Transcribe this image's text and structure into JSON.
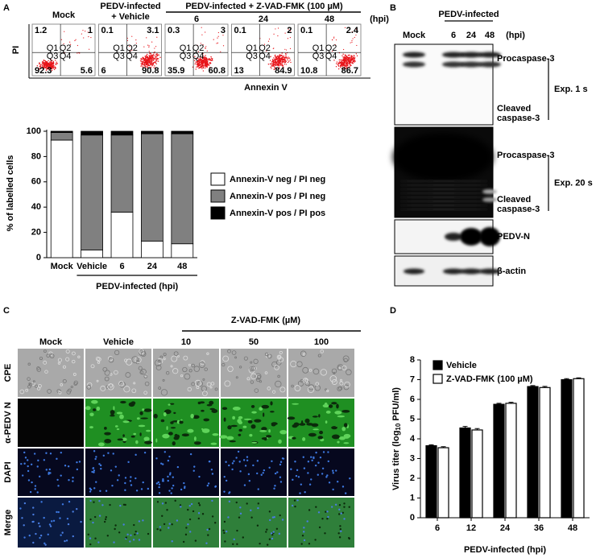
{
  "panel_labels": [
    "A",
    "B",
    "C",
    "D"
  ],
  "panel_a_flow": {
    "mock": "Mock",
    "vehicle": [
      "PEDV-infected",
      "+ Vehicle"
    ],
    "zvad": "PEDV-infected + Z-VAD-FMK (100 µM)",
    "times": [
      "6",
      "24",
      "48"
    ],
    "unit": "(hpi)",
    "y_label": "PI",
    "x_label": "Annexin V",
    "quadrant_names": [
      "Q1",
      "Q2",
      "Q3",
      "Q4"
    ],
    "plots": [
      {
        "quadrants": [
          1.2,
          1,
          92.3,
          5.6
        ]
      },
      {
        "quadrants": [
          0.1,
          3.1,
          6,
          90.8
        ]
      },
      {
        "quadrants": [
          0.3,
          3,
          35.9,
          60.8
        ]
      },
      {
        "quadrants": [
          0.1,
          2,
          13,
          84.9
        ]
      },
      {
        "quadrants": [
          0.1,
          2.4,
          10.8,
          86.7
        ]
      }
    ]
  },
  "chart_data": [
    {
      "type": "stacked_bar",
      "y_label": "% of labelled cells",
      "categories": [
        "Mock",
        "Vehicle",
        "6",
        "24",
        "48"
      ],
      "group_label": "PEDV-infected (hpi)",
      "ylim": [
        0,
        100
      ],
      "yticks": [
        0,
        20,
        40,
        60,
        80,
        100
      ],
      "series": [
        {
          "name": "Annexin-V neg / PI neg",
          "color": "#ffffff",
          "values": [
            93,
            6,
            36,
            13,
            11
          ]
        },
        {
          "name": "Annexin-V pos / PI neg",
          "color": "#808080",
          "values": [
            6,
            91,
            61,
            85,
            87
          ]
        },
        {
          "name": "Annexin-V pos / PI pos",
          "color": "#000000",
          "values": [
            1,
            3,
            3,
            2,
            2
          ]
        }
      ]
    },
    {
      "type": "grouped_bar",
      "y_label": {
        "before": "Virus titer (log",
        "sub": "10",
        "after": " PFU/ml)"
      },
      "x_label": "PEDV-infected (hpi)",
      "categories": [
        "6",
        "12",
        "24",
        "36",
        "48"
      ],
      "ylim": [
        0,
        8
      ],
      "yticks": [
        0,
        1,
        2,
        3,
        4,
        5,
        6,
        7,
        8
      ],
      "series": [
        {
          "name": "Vehicle",
          "color": "#000000",
          "values": [
            3.65,
            4.55,
            5.75,
            6.65,
            7.0
          ],
          "errors": [
            0.05,
            0.08,
            0.05,
            0.05,
            0.05
          ]
        },
        {
          "name": "Z-VAD-FMK (100 µM)",
          "color": "#ffffff",
          "values": [
            3.55,
            4.45,
            5.8,
            6.6,
            7.05
          ],
          "errors": [
            0.05,
            0.07,
            0.05,
            0.06,
            0.04
          ]
        }
      ]
    }
  ],
  "panel_b": {
    "header": "PEDV-infected",
    "lanes": [
      "Mock",
      "6",
      "24",
      "48"
    ],
    "unit": "(hpi)",
    "blots": [
      {
        "labels": [
          [
            "Procaspase-3"
          ],
          [
            "Cleaved",
            "caspase-3"
          ]
        ],
        "exposure": "Exp. 1 s"
      },
      {
        "labels": [
          [
            "Procaspase-3"
          ],
          [
            "Cleaved",
            "caspase-3"
          ]
        ],
        "exposure": "Exp. 20 s"
      },
      {
        "labels": [
          [
            "PEDV-N"
          ]
        ]
      },
      {
        "labels": [
          [
            "β-actin"
          ]
        ]
      }
    ]
  },
  "panel_c": {
    "header": "Z-VAD-FMK (µM)",
    "columns": [
      "Mock",
      "Vehicle",
      "10",
      "50",
      "100"
    ],
    "rows": [
      "CPE",
      "α-PEDV N",
      "DAPI",
      "Merge"
    ]
  }
}
